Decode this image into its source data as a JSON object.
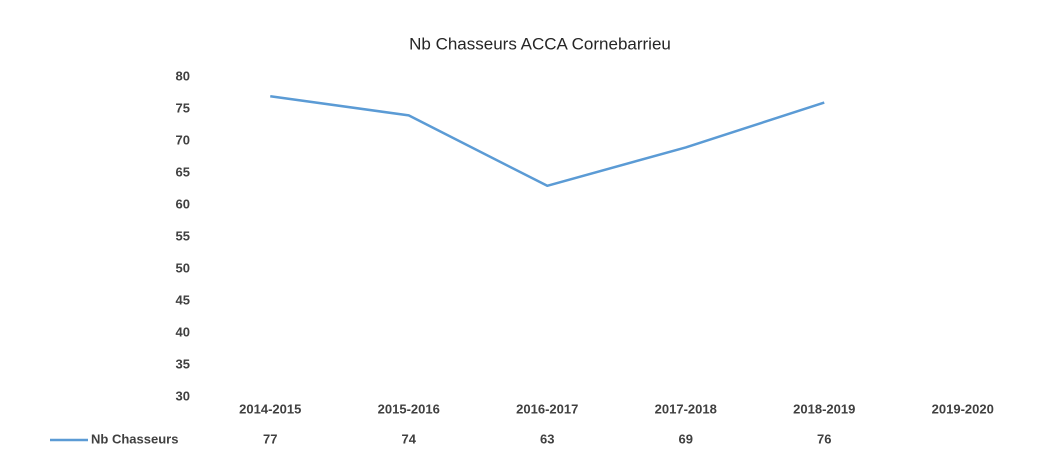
{
  "chart_data": {
    "type": "line",
    "title": "Nb Chasseurs ACCA Cornebarrieu",
    "categories": [
      "2014-2015",
      "2015-2016",
      "2016-2017",
      "2017-2018",
      "2018-2019",
      "2019-2020"
    ],
    "series": [
      {
        "name": "Nb Chasseurs",
        "color": "#5b9bd5",
        "values": [
          77,
          74,
          63,
          69,
          76,
          null
        ]
      }
    ],
    "ylim": [
      30,
      80
    ],
    "yticks": [
      30,
      35,
      40,
      45,
      50,
      55,
      60,
      65,
      70,
      75,
      80
    ],
    "grid": false,
    "legend": "bottom-left"
  }
}
